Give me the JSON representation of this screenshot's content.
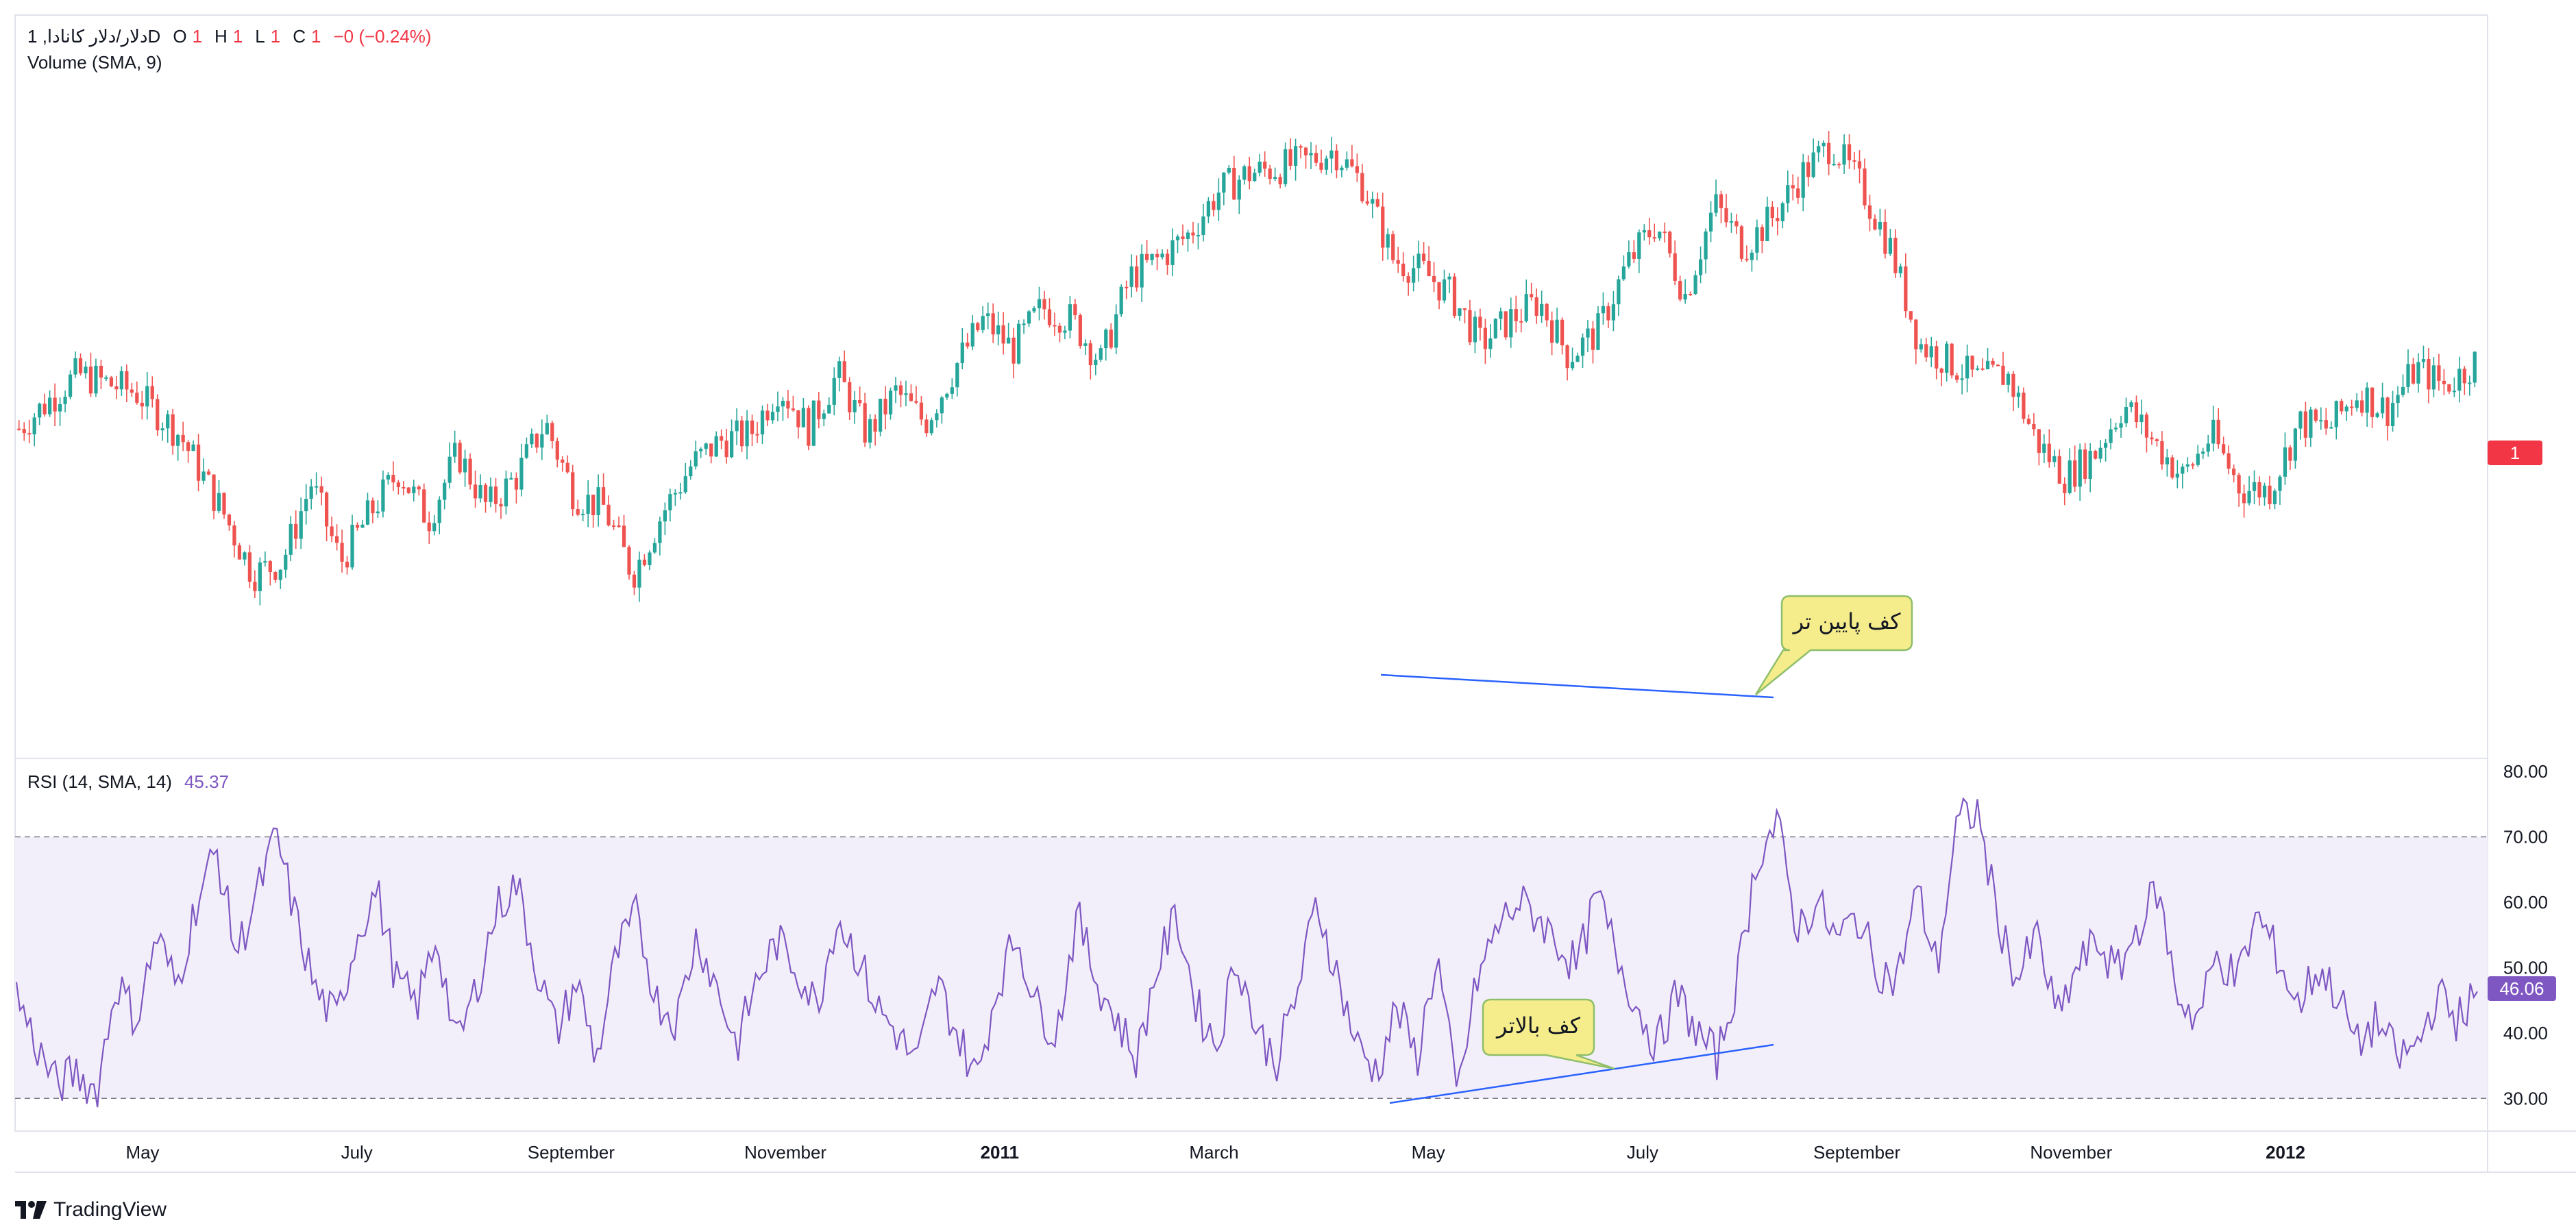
{
  "header": {
    "symbol": "دلار/دلار کانادا, 1D",
    "o_label": "O",
    "o_value": "1",
    "h_label": "H",
    "h_value": "1",
    "l_label": "L",
    "l_value": "1",
    "c_label": "C",
    "c_value": "1",
    "change": "−0 (−0.24%)",
    "volume_label": "Volume (SMA, 9)"
  },
  "rsi_legend": {
    "label": "RSI (14, SMA, 14)",
    "value": "45.37"
  },
  "price_badge": "1",
  "rsi_badge": "46.06",
  "annotations": {
    "price_callout": "کف پایین تر",
    "rsi_callout": "کف بالاتر"
  },
  "footer": {
    "brand": "TradingView"
  },
  "colors": {
    "up": "#26a69a",
    "down": "#ef5350",
    "rsi_line": "#7e57c2",
    "rsi_band": "#f3effa",
    "trendline": "#2962ff",
    "callout_fill": "#f5ec8c",
    "callout_border": "#8fbf6a",
    "price_badge": "#f23645",
    "rsi_badge": "#7e57c2"
  },
  "chart_data": [
    {
      "type": "candlestick",
      "title": "",
      "x_ticks": [
        "May",
        "July",
        "September",
        "November",
        "2011",
        "March",
        "May",
        "July",
        "September",
        "November",
        "2012"
      ],
      "price_profile": [
        [
          0,
          0.44
        ],
        [
          4,
          0.53
        ],
        [
          8,
          0.5
        ],
        [
          11,
          0.43
        ],
        [
          14,
          0.3
        ],
        [
          16,
          0.2
        ],
        [
          18,
          0.22
        ],
        [
          20,
          0.35
        ],
        [
          22,
          0.22
        ],
        [
          24,
          0.3
        ],
        [
          26,
          0.37
        ],
        [
          28,
          0.29
        ],
        [
          30,
          0.4
        ],
        [
          32,
          0.31
        ],
        [
          34,
          0.36
        ],
        [
          36,
          0.45
        ],
        [
          38,
          0.33
        ],
        [
          40,
          0.31
        ],
        [
          42,
          0.2
        ],
        [
          44,
          0.3
        ],
        [
          46,
          0.38
        ],
        [
          48,
          0.42
        ],
        [
          50,
          0.43
        ],
        [
          52,
          0.51
        ],
        [
          54,
          0.44
        ],
        [
          56,
          0.53
        ],
        [
          58,
          0.43
        ],
        [
          60,
          0.5
        ],
        [
          62,
          0.45
        ],
        [
          64,
          0.54
        ],
        [
          66,
          0.62
        ],
        [
          68,
          0.57
        ],
        [
          70,
          0.64
        ],
        [
          72,
          0.62
        ],
        [
          74,
          0.55
        ],
        [
          76,
          0.69
        ],
        [
          78,
          0.72
        ],
        [
          80,
          0.76
        ],
        [
          82,
          0.83
        ],
        [
          84,
          0.86
        ],
        [
          86,
          0.87
        ],
        [
          88,
          0.88
        ],
        [
          90,
          0.9
        ],
        [
          92,
          0.84
        ],
        [
          94,
          0.72
        ],
        [
          96,
          0.7
        ],
        [
          98,
          0.66
        ],
        [
          100,
          0.58
        ],
        [
          102,
          0.62
        ],
        [
          104,
          0.65
        ],
        [
          106,
          0.56
        ],
        [
          108,
          0.6
        ],
        [
          110,
          0.71
        ],
        [
          112,
          0.78
        ],
        [
          114,
          0.66
        ],
        [
          116,
          0.81
        ],
        [
          118,
          0.74
        ],
        [
          120,
          0.79
        ],
        [
          122,
          0.86
        ],
        [
          124,
          0.91
        ],
        [
          126,
          0.84
        ],
        [
          128,
          0.74
        ],
        [
          130,
          0.58
        ],
        [
          132,
          0.55
        ],
        [
          134,
          0.52
        ],
        [
          136,
          0.53
        ],
        [
          138,
          0.42
        ],
        [
          140,
          0.36
        ],
        [
          142,
          0.4
        ],
        [
          144,
          0.48
        ],
        [
          146,
          0.42
        ],
        [
          148,
          0.36
        ],
        [
          150,
          0.43
        ],
        [
          152,
          0.34
        ],
        [
          154,
          0.34
        ],
        [
          156,
          0.45
        ],
        [
          158,
          0.44
        ],
        [
          160,
          0.5
        ],
        [
          162,
          0.47
        ],
        [
          164,
          0.54
        ],
        [
          166,
          0.51
        ],
        [
          168,
          0.55
        ]
      ],
      "rsi_profile": [
        [
          0,
          46
        ],
        [
          2,
          38
        ],
        [
          4,
          32
        ],
        [
          6,
          34
        ],
        [
          8,
          31
        ],
        [
          10,
          48
        ],
        [
          12,
          42
        ],
        [
          14,
          55
        ],
        [
          16,
          47
        ],
        [
          18,
          60
        ],
        [
          20,
          68
        ],
        [
          22,
          52
        ],
        [
          24,
          61
        ],
        [
          26,
          70
        ],
        [
          28,
          57
        ],
        [
          30,
          46
        ],
        [
          32,
          42
        ],
        [
          34,
          55
        ],
        [
          36,
          62
        ],
        [
          38,
          48
        ],
        [
          40,
          44
        ],
        [
          42,
          55
        ],
        [
          44,
          38
        ],
        [
          46,
          47
        ],
        [
          48,
          59
        ],
        [
          50,
          63
        ],
        [
          52,
          50
        ],
        [
          54,
          40
        ],
        [
          56,
          48
        ],
        [
          58,
          36
        ],
        [
          60,
          52
        ],
        [
          62,
          58
        ],
        [
          64,
          45
        ],
        [
          66,
          42
        ],
        [
          68,
          55
        ],
        [
          70,
          47
        ],
        [
          72,
          38
        ],
        [
          74,
          48
        ],
        [
          76,
          54
        ],
        [
          78,
          50
        ],
        [
          80,
          44
        ],
        [
          82,
          58
        ],
        [
          84,
          52
        ],
        [
          86,
          44
        ],
        [
          88,
          40
        ],
        [
          90,
          35
        ],
        [
          92,
          48
        ],
        [
          94,
          40
        ],
        [
          96,
          33
        ],
        [
          98,
          47
        ],
        [
          100,
          55
        ],
        [
          102,
          44
        ],
        [
          104,
          40
        ],
        [
          106,
          58
        ],
        [
          108,
          48
        ],
        [
          110,
          42
        ],
        [
          112,
          36
        ],
        [
          114,
          50
        ],
        [
          116,
          58
        ],
        [
          118,
          44
        ],
        [
          120,
          38
        ],
        [
          122,
          52
        ],
        [
          124,
          40
        ],
        [
          126,
          36
        ],
        [
          128,
          46
        ],
        [
          130,
          60
        ],
        [
          132,
          49
        ],
        [
          134,
          38
        ],
        [
          136,
          34
        ],
        [
          138,
          44
        ],
        [
          140,
          36
        ],
        [
          142,
          52
        ],
        [
          144,
          30
        ],
        [
          146,
          48
        ],
        [
          148,
          56
        ],
        [
          150,
          60
        ],
        [
          152,
          58
        ],
        [
          154,
          54
        ],
        [
          156,
          50
        ],
        [
          158,
          61
        ],
        [
          160,
          52
        ],
        [
          162,
          44
        ],
        [
          164,
          38
        ],
        [
          166,
          46
        ],
        [
          168,
          40
        ],
        [
          170,
          36
        ],
        [
          172,
          48
        ],
        [
          174,
          67
        ],
        [
          176,
          72
        ],
        [
          178,
          56
        ],
        [
          180,
          60
        ],
        [
          182,
          54
        ],
        [
          184,
          58
        ],
        [
          186,
          50
        ],
        [
          188,
          48
        ],
        [
          190,
          62
        ],
        [
          192,
          50
        ],
        [
          194,
          72
        ],
        [
          196,
          74
        ],
        [
          198,
          58
        ],
        [
          200,
          48
        ],
        [
          202,
          55
        ],
        [
          204,
          42
        ],
        [
          206,
          50
        ],
        [
          208,
          54
        ],
        [
          210,
          49
        ],
        [
          212,
          56
        ],
        [
          214,
          62
        ],
        [
          216,
          46
        ],
        [
          218,
          42
        ],
        [
          220,
          52
        ],
        [
          222,
          48
        ],
        [
          224,
          58
        ],
        [
          226,
          52
        ],
        [
          228,
          44
        ],
        [
          230,
          50
        ],
        [
          232,
          46
        ],
        [
          234,
          38
        ],
        [
          236,
          42
        ],
        [
          238,
          36
        ],
        [
          240,
          38
        ],
        [
          242,
          46
        ],
        [
          244,
          42
        ],
        [
          246,
          46
        ]
      ],
      "rsi_range": [
        25,
        82
      ],
      "rsi_ticks": [
        "80.00",
        "70.00",
        "60.00",
        "50.00",
        "40.00",
        "30.00"
      ],
      "rsi_bands": [
        30,
        70
      ]
    }
  ]
}
